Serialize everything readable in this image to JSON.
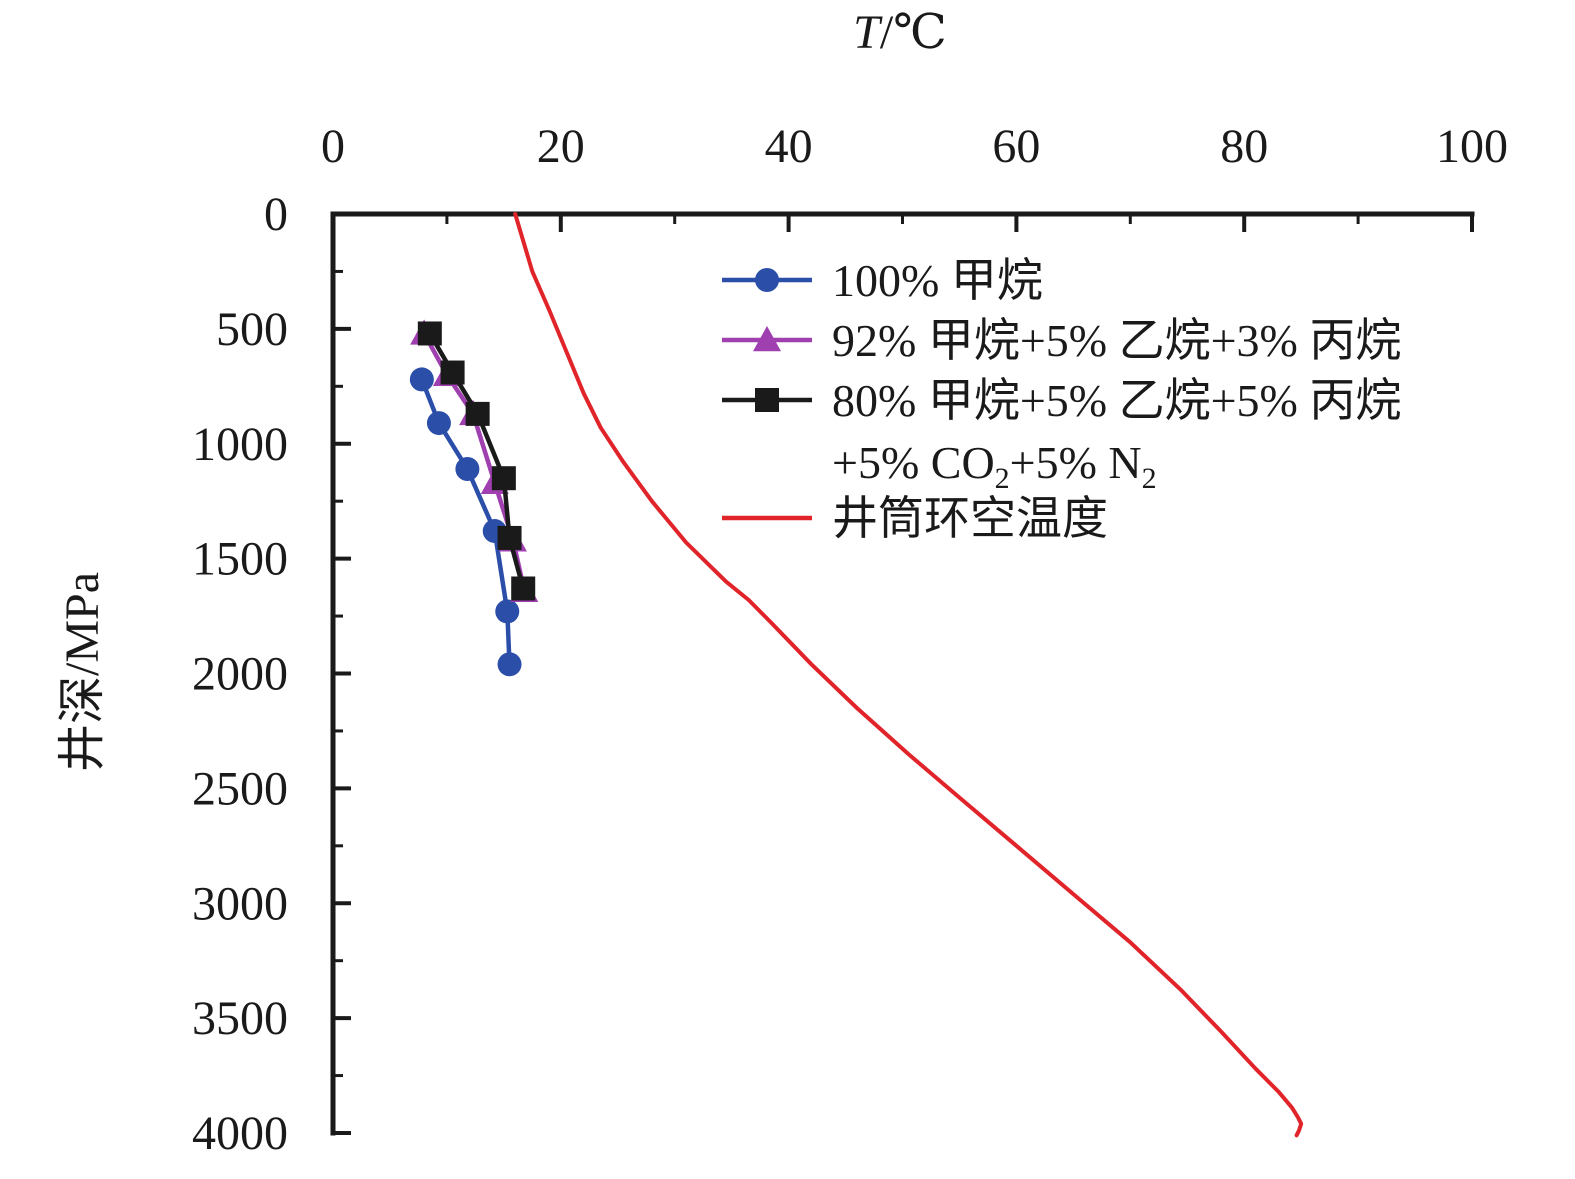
{
  "chart_data": {
    "type": "line",
    "title": "",
    "xlabel": {
      "var": "T",
      "unit": "/℃"
    },
    "ylabel": "井深/MPa",
    "xlim": [
      0,
      100
    ],
    "ylim": [
      0,
      4000
    ],
    "y_inverted": true,
    "x_axis_position": "top",
    "x_ticks": [
      "0",
      "20",
      "40",
      "60",
      "80",
      "100"
    ],
    "y_ticks": [
      "0",
      "500",
      "1000",
      "1500",
      "2000",
      "2500",
      "3000",
      "3500",
      "4000"
    ],
    "grid": false,
    "legend_position": "top-right",
    "series": [
      {
        "name": "100% 甲烷",
        "color": "#2b4ea8",
        "marker": "circle",
        "x": [
          7.8,
          9.3,
          11.8,
          14.2,
          15.3,
          15.5
        ],
        "y": [
          720,
          910,
          1110,
          1380,
          1730,
          1960
        ]
      },
      {
        "name": "92% 甲烷+5% 乙烷+3% 丙烷",
        "color": "#a040b0",
        "marker": "triangle",
        "x": [
          8.0,
          10.0,
          12.3,
          14.2,
          15.8,
          16.8
        ],
        "y": [
          520,
          700,
          870,
          1170,
          1420,
          1640
        ]
      },
      {
        "name_parts": [
          "80% 甲烷+5% 乙烷+5% 丙烷",
          "+5% CO",
          "2",
          "+5% N",
          "2"
        ],
        "color": "#1a1a1a",
        "marker": "square",
        "x": [
          8.5,
          10.5,
          12.7,
          15.0,
          15.5,
          16.7
        ],
        "y": [
          520,
          690,
          870,
          1150,
          1410,
          1630
        ]
      },
      {
        "name": "井筒环空温度",
        "color": "#e0242a",
        "marker": "none",
        "x": [
          16.0,
          17.5,
          19.0,
          20.5,
          22.0,
          23.5,
          25.5,
          28.0,
          31.0,
          34.5,
          36.5,
          38.5,
          42.0,
          46.0,
          50.5,
          55.0,
          60.0,
          65.0,
          70.0,
          74.5,
          78.0,
          81.0,
          83.0,
          84.2,
          84.7,
          85.0,
          84.8,
          84.6
        ],
        "y": [
          0,
          250,
          420,
          600,
          780,
          930,
          1080,
          1250,
          1430,
          1600,
          1680,
          1780,
          1960,
          2150,
          2350,
          2540,
          2750,
          2960,
          3170,
          3380,
          3560,
          3720,
          3820,
          3890,
          3930,
          3960,
          3990,
          4010
        ]
      }
    ]
  }
}
